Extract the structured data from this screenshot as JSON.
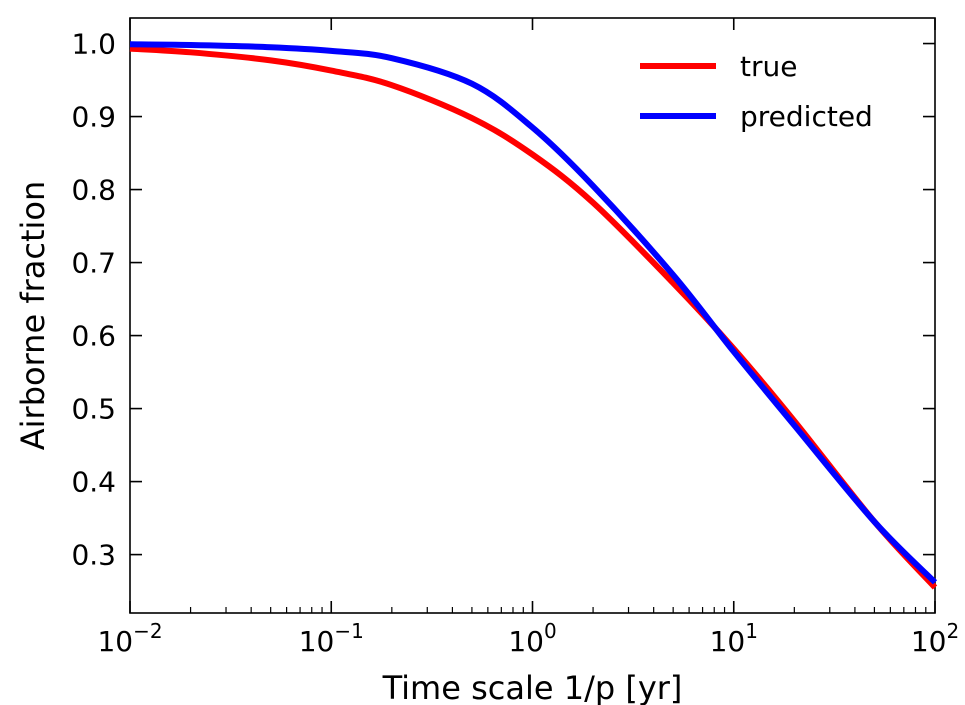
{
  "chart_data": {
    "type": "line",
    "xlabel": "Time scale 1/p [yr]",
    "ylabel": "Airborne fraction",
    "xscale": "log",
    "xlim": [
      0.01,
      100
    ],
    "ylim": [
      0.22,
      1.035
    ],
    "x_ticks": [
      {
        "value": 0.01,
        "base": "10",
        "exp": "−2"
      },
      {
        "value": 0.1,
        "base": "10",
        "exp": "−1"
      },
      {
        "value": 1,
        "base": "10",
        "exp": "0"
      },
      {
        "value": 10,
        "base": "10",
        "exp": "1"
      },
      {
        "value": 100,
        "base": "10",
        "exp": "2"
      }
    ],
    "y_ticks": [
      {
        "value": 1.0,
        "label": "1.0"
      },
      {
        "value": 0.9,
        "label": "0.9"
      },
      {
        "value": 0.8,
        "label": "0.8"
      },
      {
        "value": 0.7,
        "label": "0.7"
      },
      {
        "value": 0.6,
        "label": "0.6"
      },
      {
        "value": 0.5,
        "label": "0.5"
      },
      {
        "value": 0.4,
        "label": "0.4"
      },
      {
        "value": 0.3,
        "label": "0.3"
      }
    ],
    "grid": false,
    "legend_position": "top-right",
    "series": [
      {
        "name": "true",
        "color": "#ff0000",
        "points": [
          [
            0.01,
            0.993
          ],
          [
            0.02,
            0.988
          ],
          [
            0.05,
            0.977
          ],
          [
            0.1,
            0.963
          ],
          [
            0.2,
            0.943
          ],
          [
            0.5,
            0.898
          ],
          [
            1,
            0.848
          ],
          [
            2,
            0.782
          ],
          [
            5,
            0.672
          ],
          [
            10,
            0.582
          ],
          [
            20,
            0.483
          ],
          [
            50,
            0.345
          ],
          [
            100,
            0.255
          ]
        ]
      },
      {
        "name": "predicted",
        "color": "#0000ff",
        "points": [
          [
            0.01,
            0.999
          ],
          [
            0.02,
            0.998
          ],
          [
            0.05,
            0.995
          ],
          [
            0.1,
            0.99
          ],
          [
            0.2,
            0.98
          ],
          [
            0.5,
            0.945
          ],
          [
            1,
            0.885
          ],
          [
            2,
            0.805
          ],
          [
            5,
            0.683
          ],
          [
            10,
            0.578
          ],
          [
            20,
            0.477
          ],
          [
            50,
            0.345
          ],
          [
            100,
            0.262
          ]
        ]
      }
    ]
  }
}
